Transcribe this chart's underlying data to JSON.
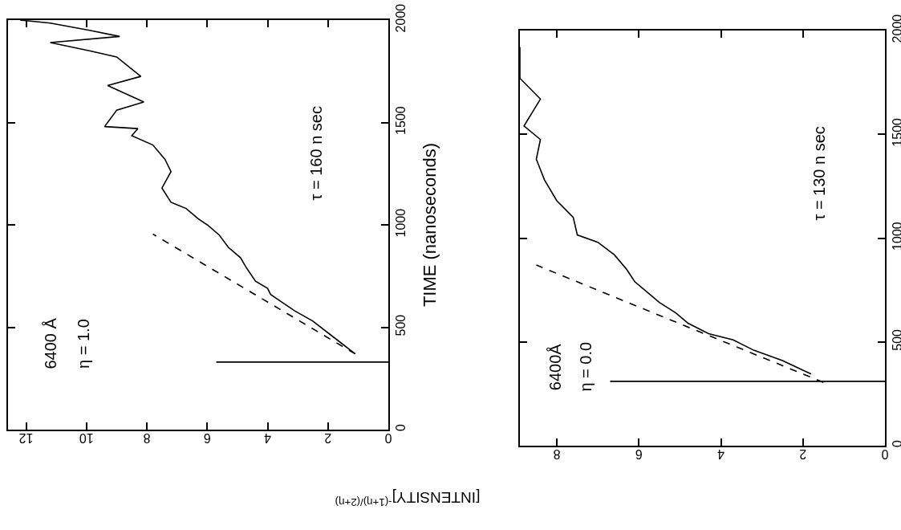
{
  "chart_data": [
    {
      "type": "line",
      "xlabel": "[INTENSITY]$^{-(1+η)/(2+η)}$",
      "ylabel": "TIME (nanoseconds)",
      "xlim": [
        12.6,
        0
      ],
      "xticks": [
        0,
        2,
        4,
        6,
        8,
        10,
        12
      ],
      "ylim": [
        0,
        2000
      ],
      "yticks": [
        0,
        500,
        1000,
        1500,
        2000
      ],
      "annotations": [
        "6400 Å",
        "η = 1.0",
        "τ = 160 n sec"
      ],
      "series": [
        {
          "color": "#000000",
          "line_style": "solid",
          "x": [
            5.7,
            0,
            null,
            1.1,
            1.8,
            2.5,
            3.1,
            3.6,
            3.9,
            4.0,
            4.4,
            4.7,
            4.9,
            5.3,
            5.6,
            6.0,
            6.3,
            6.7,
            7.2,
            7.5,
            7.2,
            7.4,
            7.8,
            8.5,
            8.3,
            9.4,
            9.0,
            8.1,
            9.3,
            8.2,
            9.0,
            9.9,
            11.2,
            8.9,
            9.9,
            11.2,
            12.2
          ],
          "values": [
            330,
            330,
            null,
            370,
            450,
            530,
            580,
            630,
            660,
            690,
            725,
            790,
            840,
            890,
            950,
            1000,
            1030,
            1080,
            1110,
            1180,
            1260,
            1320,
            1390,
            1435,
            1470,
            1480,
            1560,
            1600,
            1680,
            1725,
            1820,
            1850,
            1890,
            1920,
            1950,
            1985,
            2000
          ]
        },
        {
          "color": "#000000",
          "line_style": "dashed",
          "x": [
            1.1,
            7.8
          ],
          "values": [
            370,
            955
          ]
        }
      ]
    },
    {
      "type": "line",
      "xlim": [
        8.9,
        0
      ],
      "xticks": [
        0,
        2,
        4,
        6,
        8
      ],
      "ylim": [
        0,
        2000
      ],
      "yticks": [
        0,
        500,
        1000,
        1500,
        2000
      ],
      "annotations": [
        "6400Å",
        "η = 0.0",
        "τ = 130 n sec"
      ],
      "series": [
        {
          "color": "#000000",
          "line_style": "solid",
          "x": [
            6.7,
            0,
            null,
            1.8,
            2.5,
            3.2,
            3.7,
            4.3,
            4.8,
            5.1,
            5.5,
            5.8,
            6.1,
            6.3,
            6.6,
            7.0,
            7.5,
            7.6,
            8.0,
            8.3,
            8.5,
            8.4,
            8.8,
            8.4,
            8.9,
            8.9
          ],
          "values": [
            310,
            310,
            null,
            345,
            410,
            460,
            510,
            540,
            590,
            640,
            690,
            740,
            790,
            850,
            920,
            980,
            1015,
            1100,
            1180,
            1280,
            1380,
            1475,
            1540,
            1670,
            1770,
            1920
          ]
        },
        {
          "color": "#000000",
          "line_style": "dashed",
          "x": [
            1.5,
            8.5
          ],
          "values": [
            305,
            870
          ]
        }
      ]
    }
  ]
}
